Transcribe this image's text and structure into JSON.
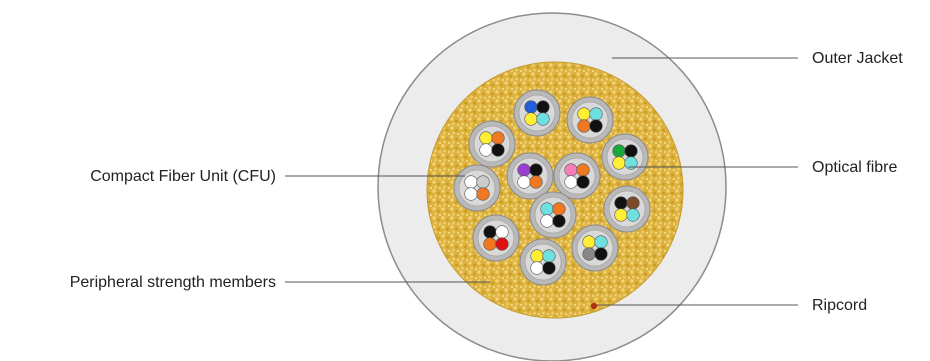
{
  "labels": {
    "outer_jacket": "Outer Jacket",
    "optical_fibre": "Optical fibre",
    "ripcord": "Ripcord",
    "cfu": "Compact Fiber Unit (CFU)",
    "strength_members": "Peripheral strength members"
  },
  "colors": {
    "jacket_fill": "#ececec",
    "jacket_stroke": "#8c8c8c",
    "strength_fill": "#ddb23c",
    "cfu_fill": "#b9b9b9",
    "cfu_inner": "#d9d9d9",
    "ripcord": "#b03010"
  },
  "cfus": [
    {
      "fibres": [
        "#1f5fdc",
        "#111111",
        "#ffee33",
        "#6fe0e0"
      ]
    },
    {
      "fibres": [
        "#ffee33",
        "#6fe0e0",
        "#f07820",
        "#111111"
      ]
    },
    {
      "fibres": [
        "#ffee33",
        "#f07820",
        "#ffffff",
        "#111111"
      ]
    },
    {
      "fibres": [
        "#18a83c",
        "#111111",
        "#ffee33",
        "#6fe0e0"
      ]
    },
    {
      "fibres": [
        "#9b3fd0",
        "#111111",
        "#ffffff",
        "#f07820"
      ]
    },
    {
      "fibres": [
        "#f47fb8",
        "#f07820",
        "#ffffff",
        "#111111"
      ]
    },
    {
      "fibres": [
        "#ffffff",
        "#cccccc",
        "#ffffff",
        "#f07820"
      ]
    },
    {
      "fibres": [
        "#6fe0e0",
        "#f07820",
        "#ffffff",
        "#111111"
      ]
    },
    {
      "fibres": [
        "#111111",
        "#7a4a2a",
        "#ffee33",
        "#6fe0e0"
      ]
    },
    {
      "fibres": [
        "#111111",
        "#ffffff",
        "#f07820",
        "#e01010"
      ]
    },
    {
      "fibres": [
        "#ffee33",
        "#6fe0e0",
        "#ffffff",
        "#111111"
      ]
    },
    {
      "fibres": [
        "#ffee33",
        "#6fe0e0",
        "#888888",
        "#111111"
      ]
    }
  ]
}
